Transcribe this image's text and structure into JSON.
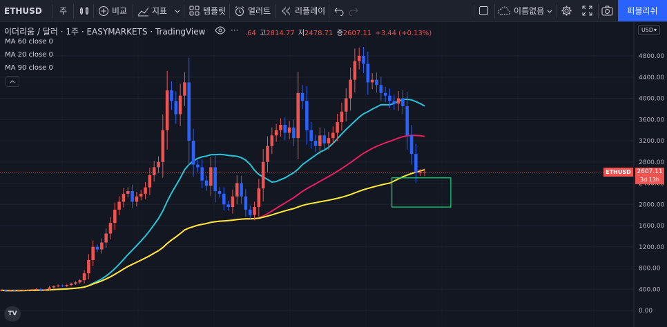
{
  "toolbar": {
    "symbol": "ETHUSD",
    "interval": "주",
    "compare_label": "비교",
    "indicators_label": "지표",
    "templates_label": "템플릿",
    "alert_label": "얼러트",
    "replay_label": "리플레이",
    "layout_name": "이름없음",
    "publish_label": "퍼블리쉬"
  },
  "legend": {
    "title": "이더리움 / 달러 · 1주 · EASYMARKETS · TradingView",
    "open_partial": ".64",
    "high_label": "고",
    "high_value": "2814.77",
    "low_label": "저",
    "low_value": "2478.71",
    "close_label": "종",
    "close_value": "2607.11",
    "change": "+3.44 (+0.13%)",
    "ma_labels": [
      "MA 60 close 0",
      "MA 20 close 0",
      "MA 90 close 0"
    ]
  },
  "price_scale": {
    "currency": "USD"
  },
  "price_tag": {
    "symbol": "ETHUSD",
    "price": "2607.11",
    "countdown": "3d 13h"
  },
  "colors": {
    "up": "#ef5350",
    "down": "#2962ff",
    "ma20": "#26c6da",
    "ma60": "#e91e63",
    "ma90": "#ffeb3b",
    "box": "#00e676"
  },
  "chart_data": {
    "type": "candlestick",
    "ylim": [
      0,
      5000
    ],
    "yticks": [
      0,
      400,
      800,
      1200,
      1600,
      2000,
      2400,
      2800,
      3200,
      3600,
      4000,
      4400,
      4800
    ],
    "last_price": 2607.11,
    "weekly_close": [
      380,
      370,
      375,
      372,
      378,
      380,
      385,
      395,
      405,
      380,
      395,
      435,
      455,
      470,
      460,
      480,
      505,
      530,
      570,
      700,
      950,
      1200,
      1150,
      1280,
      1450,
      1650,
      1900,
      2050,
      2200,
      2250,
      2050,
      2150,
      2200,
      2320,
      2550,
      2700,
      2800,
      3400,
      4150,
      3950,
      3700,
      4050,
      4300,
      3200,
      2750,
      2700,
      2450,
      2350,
      2700,
      2250,
      2200,
      2000,
      1950,
      2150,
      2400,
      2150,
      1900,
      1800,
      1950,
      2300,
      2800,
      3100,
      3300,
      3400,
      3500,
      3350,
      3450,
      3250,
      4100,
      3950,
      3400,
      3200,
      3100,
      3300,
      3150,
      3250,
      3350,
      3550,
      3750,
      4000,
      4350,
      4700,
      4800,
      4650,
      4300,
      4350,
      4250,
      4100,
      4050,
      3950,
      3900,
      4000,
      3850,
      3300,
      2950,
      2600,
      2600,
      2607.11
    ],
    "ma_series": [
      {
        "name": "MA 20",
        "period": 20
      },
      {
        "name": "MA 60",
        "period": 60
      },
      {
        "name": "MA 90",
        "period": 90
      }
    ],
    "highlight_box": {
      "week_start": 90,
      "week_end": 97,
      "price_low": 1950,
      "price_high": 2500
    }
  }
}
